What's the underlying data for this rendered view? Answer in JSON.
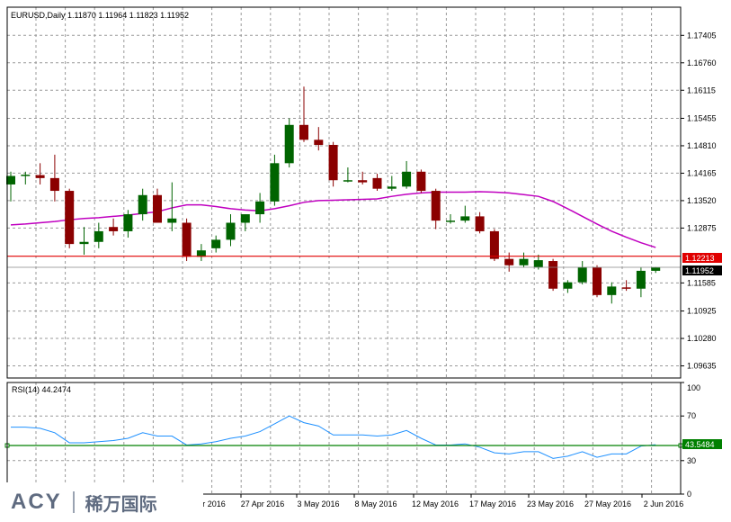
{
  "chart_title": "EURUSD,Daily  1.11870 1.11964 1.11823 1.11952",
  "colors": {
    "bull": "#006400",
    "bear": "#8b0000",
    "ma": "#c000c0",
    "level_line": "#e00000",
    "rsi_line": "#1e90ff",
    "rsi_level": "#008000"
  },
  "chart_data": [
    {
      "type": "candlestick",
      "title": "EURUSD,Daily  1.11870 1.11964 1.11823 1.11952",
      "ylim": [
        1.0935,
        1.1775
      ],
      "y_ticks": [
        "1.17405",
        "1.16760",
        "1.16115",
        "1.15455",
        "1.14810",
        "1.14165",
        "1.13520",
        "1.12875",
        "1.11585",
        "1.10925",
        "1.10280",
        "1.09635"
      ],
      "x_ticks": [
        "r 2016",
        "27 Apr 2016",
        "3 May 2016",
        "8 May 2016",
        "12 May 2016",
        "17 May 2016",
        "23 May 2016",
        "27 May 2016",
        "2 Jun 2016"
      ],
      "candles": [
        {
          "o": 1.139,
          "h": 1.142,
          "l": 1.135,
          "c": 1.141
        },
        {
          "o": 1.141,
          "h": 1.142,
          "l": 1.139,
          "c": 1.1413
        },
        {
          "o": 1.1412,
          "h": 1.144,
          "l": 1.139,
          "c": 1.1405
        },
        {
          "o": 1.1405,
          "h": 1.146,
          "l": 1.135,
          "c": 1.1375
        },
        {
          "o": 1.1375,
          "h": 1.138,
          "l": 1.124,
          "c": 1.125
        },
        {
          "o": 1.125,
          "h": 1.129,
          "l": 1.1225,
          "c": 1.1255
        },
        {
          "o": 1.1255,
          "h": 1.13,
          "l": 1.124,
          "c": 1.128
        },
        {
          "o": 1.129,
          "h": 1.131,
          "l": 1.127,
          "c": 1.128
        },
        {
          "o": 1.128,
          "h": 1.133,
          "l": 1.1265,
          "c": 1.132
        },
        {
          "o": 1.132,
          "h": 1.138,
          "l": 1.1305,
          "c": 1.1365
        },
        {
          "o": 1.1365,
          "h": 1.138,
          "l": 1.13,
          "c": 1.13
        },
        {
          "o": 1.13,
          "h": 1.1395,
          "l": 1.128,
          "c": 1.131
        },
        {
          "o": 1.13,
          "h": 1.131,
          "l": 1.121,
          "c": 1.122
        },
        {
          "o": 1.122,
          "h": 1.125,
          "l": 1.121,
          "c": 1.1235
        },
        {
          "o": 1.124,
          "h": 1.127,
          "l": 1.123,
          "c": 1.126
        },
        {
          "o": 1.126,
          "h": 1.132,
          "l": 1.1245,
          "c": 1.13
        },
        {
          "o": 1.13,
          "h": 1.132,
          "l": 1.128,
          "c": 1.132
        },
        {
          "o": 1.132,
          "h": 1.137,
          "l": 1.13,
          "c": 1.135
        },
        {
          "o": 1.135,
          "h": 1.146,
          "l": 1.134,
          "c": 1.144
        },
        {
          "o": 1.144,
          "h": 1.1545,
          "l": 1.143,
          "c": 1.153
        },
        {
          "o": 1.153,
          "h": 1.162,
          "l": 1.149,
          "c": 1.1495
        },
        {
          "o": 1.1495,
          "h": 1.1525,
          "l": 1.147,
          "c": 1.1483
        },
        {
          "o": 1.1483,
          "h": 1.149,
          "l": 1.1385,
          "c": 1.14
        },
        {
          "o": 1.14,
          "h": 1.143,
          "l": 1.1395,
          "c": 1.14
        },
        {
          "o": 1.14,
          "h": 1.142,
          "l": 1.139,
          "c": 1.1395
        },
        {
          "o": 1.1405,
          "h": 1.1415,
          "l": 1.1375,
          "c": 1.138
        },
        {
          "o": 1.138,
          "h": 1.141,
          "l": 1.1375,
          "c": 1.1385
        },
        {
          "o": 1.1385,
          "h": 1.1445,
          "l": 1.138,
          "c": 1.142
        },
        {
          "o": 1.142,
          "h": 1.1425,
          "l": 1.137,
          "c": 1.1375
        },
        {
          "o": 1.1375,
          "h": 1.138,
          "l": 1.1285,
          "c": 1.1305
        },
        {
          "o": 1.1303,
          "h": 1.132,
          "l": 1.1298,
          "c": 1.1305
        },
        {
          "o": 1.1305,
          "h": 1.134,
          "l": 1.13,
          "c": 1.1315
        },
        {
          "o": 1.1315,
          "h": 1.1325,
          "l": 1.1275,
          "c": 1.128
        },
        {
          "o": 1.128,
          "h": 1.1285,
          "l": 1.121,
          "c": 1.1215
        },
        {
          "o": 1.1215,
          "h": 1.123,
          "l": 1.1185,
          "c": 1.12
        },
        {
          "o": 1.12,
          "h": 1.123,
          "l": 1.1195,
          "c": 1.1215
        },
        {
          "o": 1.1195,
          "h": 1.1225,
          "l": 1.119,
          "c": 1.1212
        },
        {
          "o": 1.121,
          "h": 1.1215,
          "l": 1.114,
          "c": 1.1145
        },
        {
          "o": 1.1145,
          "h": 1.1165,
          "l": 1.1135,
          "c": 1.116
        },
        {
          "o": 1.116,
          "h": 1.121,
          "l": 1.1155,
          "c": 1.1195
        },
        {
          "o": 1.1195,
          "h": 1.12,
          "l": 1.1125,
          "c": 1.113
        },
        {
          "o": 1.113,
          "h": 1.116,
          "l": 1.111,
          "c": 1.115
        },
        {
          "o": 1.1148,
          "h": 1.1165,
          "l": 1.114,
          "c": 1.1145
        },
        {
          "o": 1.1145,
          "h": 1.1195,
          "l": 1.1125,
          "c": 1.1187
        },
        {
          "o": 1.1187,
          "h": 1.1196,
          "l": 1.1182,
          "c": 1.1195
        }
      ],
      "moving_average": [
        1.1295,
        1.1297,
        1.13,
        1.1303,
        1.1307,
        1.131,
        1.1312,
        1.1315,
        1.1318,
        1.1322,
        1.1326,
        1.1335,
        1.1342,
        1.1342,
        1.1338,
        1.1333,
        1.133,
        1.1328,
        1.1333,
        1.134,
        1.1348,
        1.1352,
        1.1353,
        1.1354,
        1.1355,
        1.1356,
        1.1362,
        1.1367,
        1.137,
        1.1372,
        1.1372,
        1.1372,
        1.1373,
        1.1372,
        1.137,
        1.1366,
        1.1362,
        1.135,
        1.1333,
        1.1315,
        1.1297,
        1.128,
        1.1266,
        1.1253,
        1.1242
      ],
      "level_value": "1.12213",
      "level_price": 1.12213,
      "current_value": "1.11952",
      "current_price": 1.11952
    },
    {
      "type": "line",
      "title": "RSI(14) 44.2474",
      "ylim": [
        0,
        100
      ],
      "y_ticks": [
        "100",
        "70",
        "30",
        "0"
      ],
      "values": [
        60,
        60,
        59,
        55,
        46,
        46,
        47,
        48,
        50,
        55,
        52,
        52,
        44,
        45,
        47,
        50,
        52,
        56,
        63,
        70,
        64,
        61,
        53,
        53,
        53,
        52,
        53,
        57,
        50,
        44,
        44,
        45,
        42,
        37,
        36,
        38,
        38,
        32,
        34,
        38,
        33,
        36,
        36,
        43,
        44.2474
      ],
      "level_value": "43.5484",
      "level": 43.5484
    }
  ],
  "logo": {
    "brand": "ACY",
    "cn": "稀万国际"
  }
}
